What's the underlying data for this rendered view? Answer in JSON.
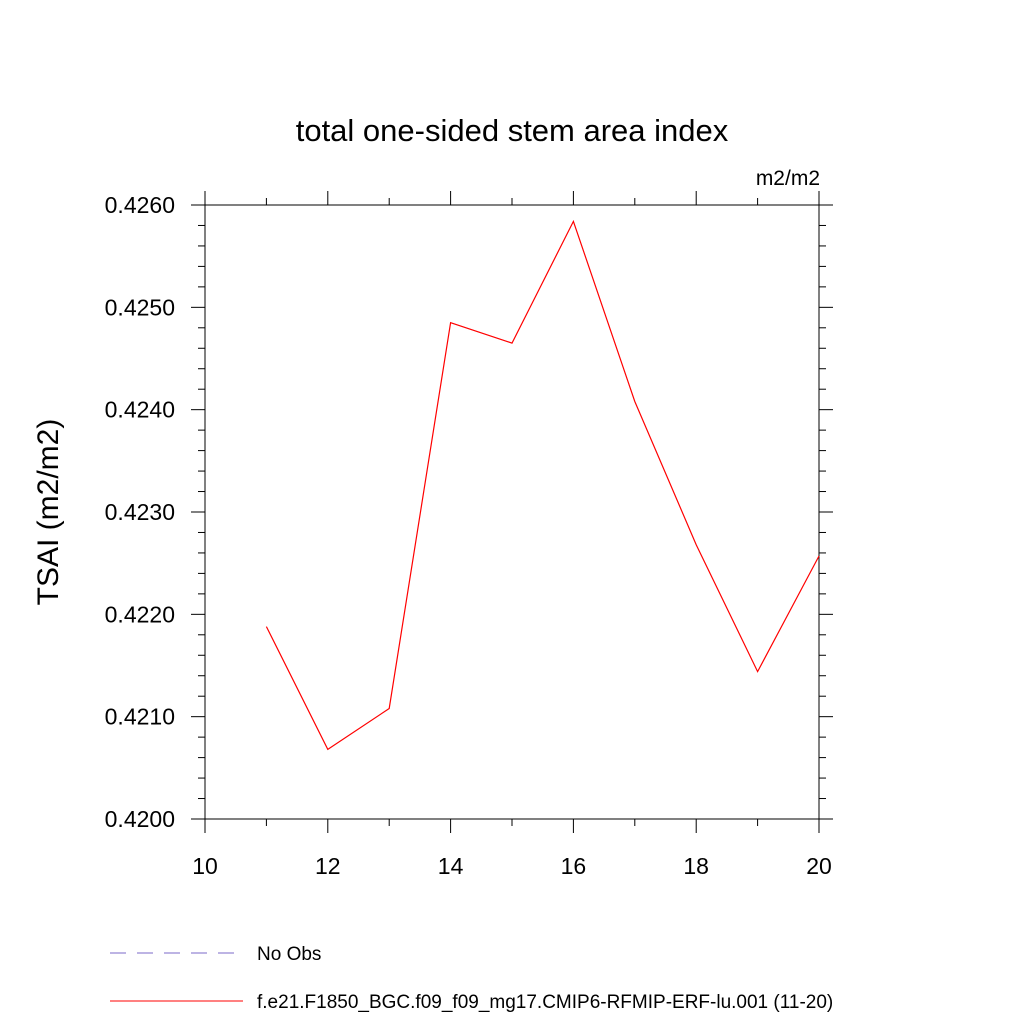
{
  "chart_data": {
    "type": "line",
    "title": "total one-sided stem area index",
    "units_label": "m2/m2",
    "ylabel": "TSAI  (m2/m2)",
    "xlabel": "",
    "xlim": [
      10,
      20
    ],
    "ylim": [
      0.42,
      0.426
    ],
    "x_ticks": [
      "10",
      "12",
      "14",
      "16",
      "18",
      "20"
    ],
    "y_ticks": [
      "0.4200",
      "0.4210",
      "0.4220",
      "0.4230",
      "0.4240",
      "0.4250",
      "0.4260"
    ],
    "grid": false,
    "legend_position": "bottom",
    "series": [
      {
        "name": "No Obs",
        "color": "#7b68c8",
        "style": "dashed",
        "x": [],
        "y": []
      },
      {
        "name": "f.e21.F1850_BGC.f09_f09_mg17.CMIP6-RFMIP-ERF-lu.001 (11-20)",
        "color": "#ff0000",
        "style": "solid",
        "x": [
          11,
          12,
          13,
          14,
          15,
          16,
          17,
          18,
          19,
          20
        ],
        "y": [
          0.42188,
          0.42068,
          0.42108,
          0.42485,
          0.42465,
          0.42584,
          0.42408,
          0.42268,
          0.42144,
          0.42257
        ]
      }
    ]
  }
}
